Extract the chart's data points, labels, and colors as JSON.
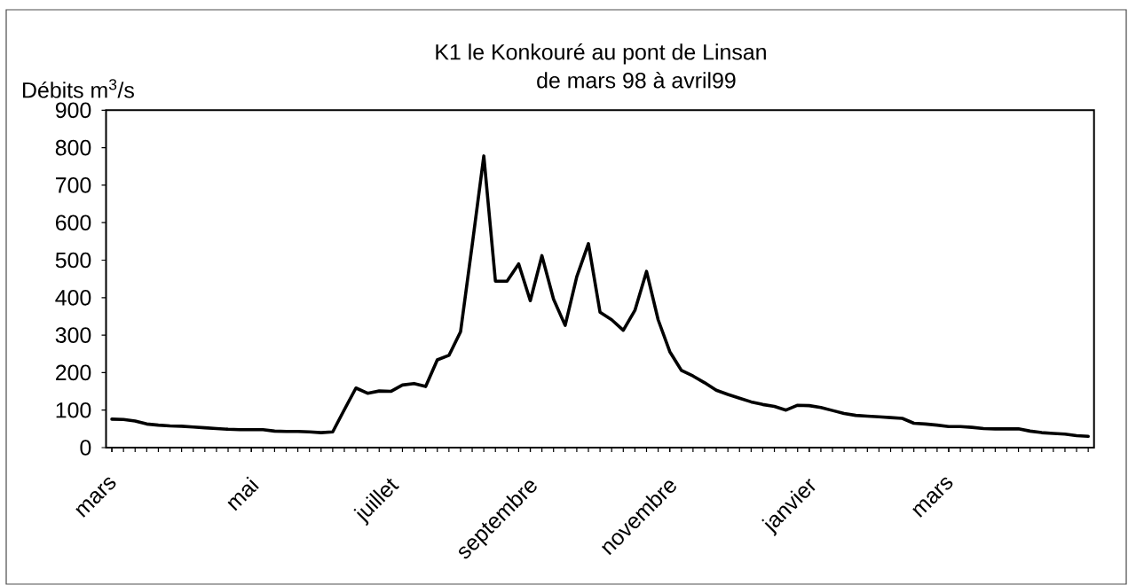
{
  "chart_data": {
    "type": "line",
    "title": "K1 le Konkouré au pont de Linsan",
    "subtitle": "de mars 98 à avril99",
    "ylabel": "Débits m$^{3}$/s",
    "categories": [
      "mars",
      null,
      null,
      null,
      null,
      null,
      null,
      null,
      null,
      null,
      null,
      null,
      "mai",
      null,
      null,
      null,
      null,
      null,
      null,
      null,
      null,
      null,
      null,
      null,
      "juillet",
      null,
      null,
      null,
      null,
      null,
      null,
      null,
      null,
      null,
      null,
      null,
      "septembre",
      null,
      null,
      null,
      null,
      null,
      null,
      null,
      null,
      null,
      null,
      null,
      "novembre",
      null,
      null,
      null,
      null,
      null,
      null,
      null,
      null,
      null,
      null,
      null,
      "janvier",
      null,
      null,
      null,
      null,
      null,
      null,
      null,
      null,
      null,
      null,
      null,
      "mars",
      null,
      null,
      null,
      null,
      null,
      null,
      null,
      null,
      null,
      null,
      null,
      null
    ],
    "series": [
      {
        "color": "#000000",
        "values": [
          76,
          75,
          71,
          63,
          60,
          58,
          57,
          55,
          53,
          51,
          49,
          48,
          48,
          48,
          44,
          43,
          43,
          42,
          40,
          42,
          101,
          159,
          145,
          151,
          150,
          167,
          171,
          163,
          234,
          246,
          309,
          540,
          778,
          444,
          444,
          490,
          392,
          512,
          396,
          326,
          456,
          544,
          361,
          341,
          313,
          366,
          470,
          341,
          256,
          206,
          191,
          173,
          153,
          142,
          132,
          122,
          115,
          110,
          100,
          113,
          112,
          107,
          99,
          91,
          86,
          84,
          82,
          80,
          78,
          65,
          63,
          60,
          56,
          56,
          54,
          51,
          50,
          50,
          50,
          44,
          40,
          38,
          36,
          32,
          30
        ]
      }
    ],
    "ylim": [
      0,
      900
    ],
    "yticks": [
      0,
      100,
      200,
      300,
      400,
      500,
      600,
      700,
      800,
      900
    ],
    "marker": "none",
    "line_style": "solid"
  }
}
